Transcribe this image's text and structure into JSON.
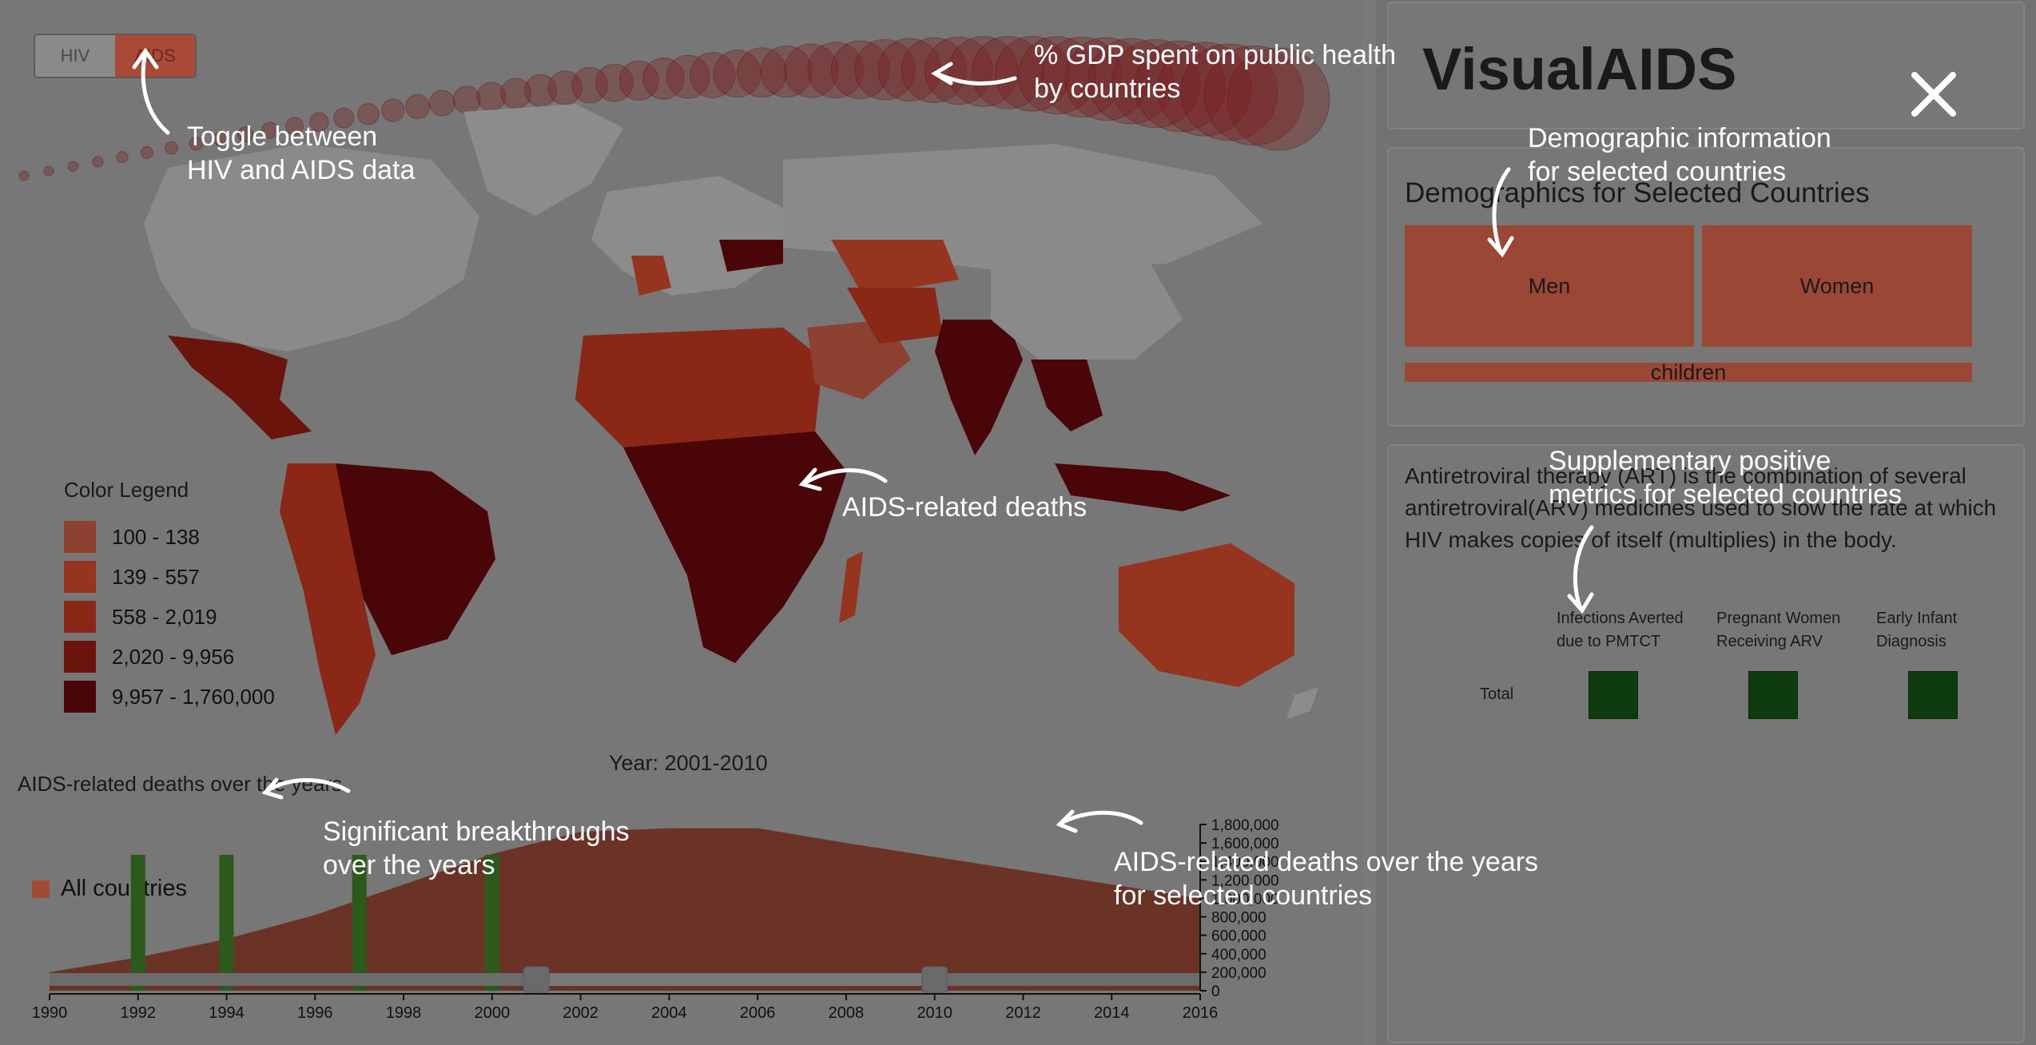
{
  "toggle": {
    "options": [
      "HIV",
      "AIDS"
    ],
    "active": "AIDS"
  },
  "legend": {
    "title": "Color Legend",
    "items": [
      {
        "label": "100 - 138",
        "color": "#8d4131"
      },
      {
        "label": "139 - 557",
        "color": "#96351f"
      },
      {
        "label": "558 - 2,019",
        "color": "#8a2716"
      },
      {
        "label": "2,020 - 9,956",
        "color": "#6a140c"
      },
      {
        "label": "9,957 - 1,760,000",
        "color": "#4a0508"
      }
    ]
  },
  "timeline": {
    "year_label": "Year: 2001-2010",
    "title": "AIDS-related deaths over the years",
    "series_label": "All countries",
    "axis_y_ticks": [
      "1,800,000",
      "1,600,000",
      "1,400,000",
      "1,200,000",
      "1,000,000",
      "800,000",
      "600,000",
      "400,000",
      "200,000",
      "0"
    ],
    "axis_x_ticks": [
      "1990",
      "1992",
      "1994",
      "1996",
      "1998",
      "2000",
      "2002",
      "2004",
      "2006",
      "2008",
      "2010",
      "2012",
      "2014",
      "2016"
    ]
  },
  "chart_data": {
    "type": "area",
    "x": [
      1990,
      1992,
      1994,
      1996,
      1998,
      2000,
      2002,
      2004,
      2006,
      2008,
      2010,
      2012,
      2014,
      2016
    ],
    "series": [
      {
        "name": "All countries",
        "values": [
          200000,
          360000,
          560000,
          820000,
          1150000,
          1480000,
          1720000,
          1760000,
          1760000,
          1600000,
          1450000,
          1300000,
          1150000,
          1000000
        ]
      }
    ],
    "breakthrough_years": [
      1992,
      1994,
      1997,
      2000
    ],
    "brush_range": [
      2001,
      2010
    ],
    "xlim": [
      1990,
      2016
    ],
    "ylim": [
      0,
      1800000
    ]
  },
  "annotations": {
    "toggle": "Toggle between\nHIV and AIDS data",
    "gdp": "% GDP spent on public health\nby countries",
    "deaths_map": "AIDS-related deaths",
    "breakthroughs": "Significant breakthroughs\nover the years",
    "deaths_selected": "AIDS-related deaths over the years\nfor selected countries",
    "demographic": "Demographic information\nfor selected countries",
    "supplementary": "Supplementary positive\nmetrics for selected countries"
  },
  "sidebar": {
    "title": "VisualAIDS",
    "demographics_heading": "Demographics for Selected Countries",
    "men_label": "Men",
    "women_label": "Women",
    "children_label": "children",
    "art_text": "Antiretroviral therapy (ART) is the combination of several antiretroviral(ARV) medicines used to slow the rate at which HIV makes copies of itself (multiplies) in the body.",
    "metrics_headers": [
      "Infections Averted\ndue to PMTCT",
      "Pregnant Women\nReceiving ARV",
      "Early Infant\nDiagnosis"
    ],
    "metrics_total_label": "Total",
    "metric_color": "#0e3b10"
  },
  "colors": {
    "area": "#6b3226",
    "breakthrough": "#2b5a1c",
    "bubble": "#7a1d1d",
    "panel_bg": "#777777"
  }
}
